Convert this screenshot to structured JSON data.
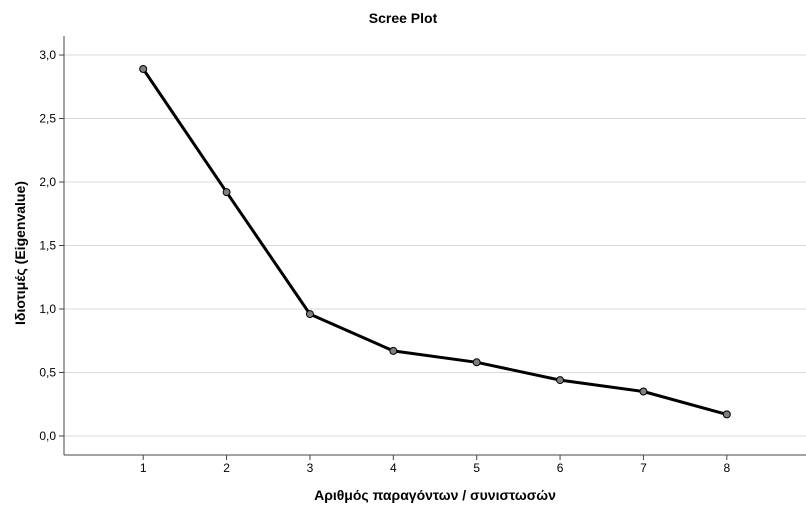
{
  "chart_data": {
    "type": "line",
    "title": "Scree Plot",
    "xlabel": "Αριθμός παραγόντων / συνιστωσών",
    "ylabel": "Ιδιοτιμές (Eigenvalue)",
    "x": [
      1,
      2,
      3,
      4,
      5,
      6,
      7,
      8
    ],
    "series": [
      {
        "values": [
          2.89,
          1.92,
          0.96,
          0.67,
          0.58,
          0.44,
          0.35,
          0.17
        ]
      }
    ],
    "ylim": [
      -0.15,
      3.15
    ],
    "xlim": [
      0.05,
      8.95
    ],
    "yticks": [
      "0,0",
      "0,5",
      "1,0",
      "1,5",
      "2,0",
      "2,5",
      "3,0"
    ],
    "ytick_values": [
      0,
      0.5,
      1.0,
      1.5,
      2.0,
      2.5,
      3.0
    ],
    "xticks": [
      "1",
      "2",
      "3",
      "4",
      "5",
      "6",
      "7",
      "8"
    ],
    "grid": "horizontal",
    "colors": {
      "line": "#000000",
      "marker": "#7f7f7f",
      "grid": "#d9d9d9",
      "axis": "#444444"
    }
  }
}
